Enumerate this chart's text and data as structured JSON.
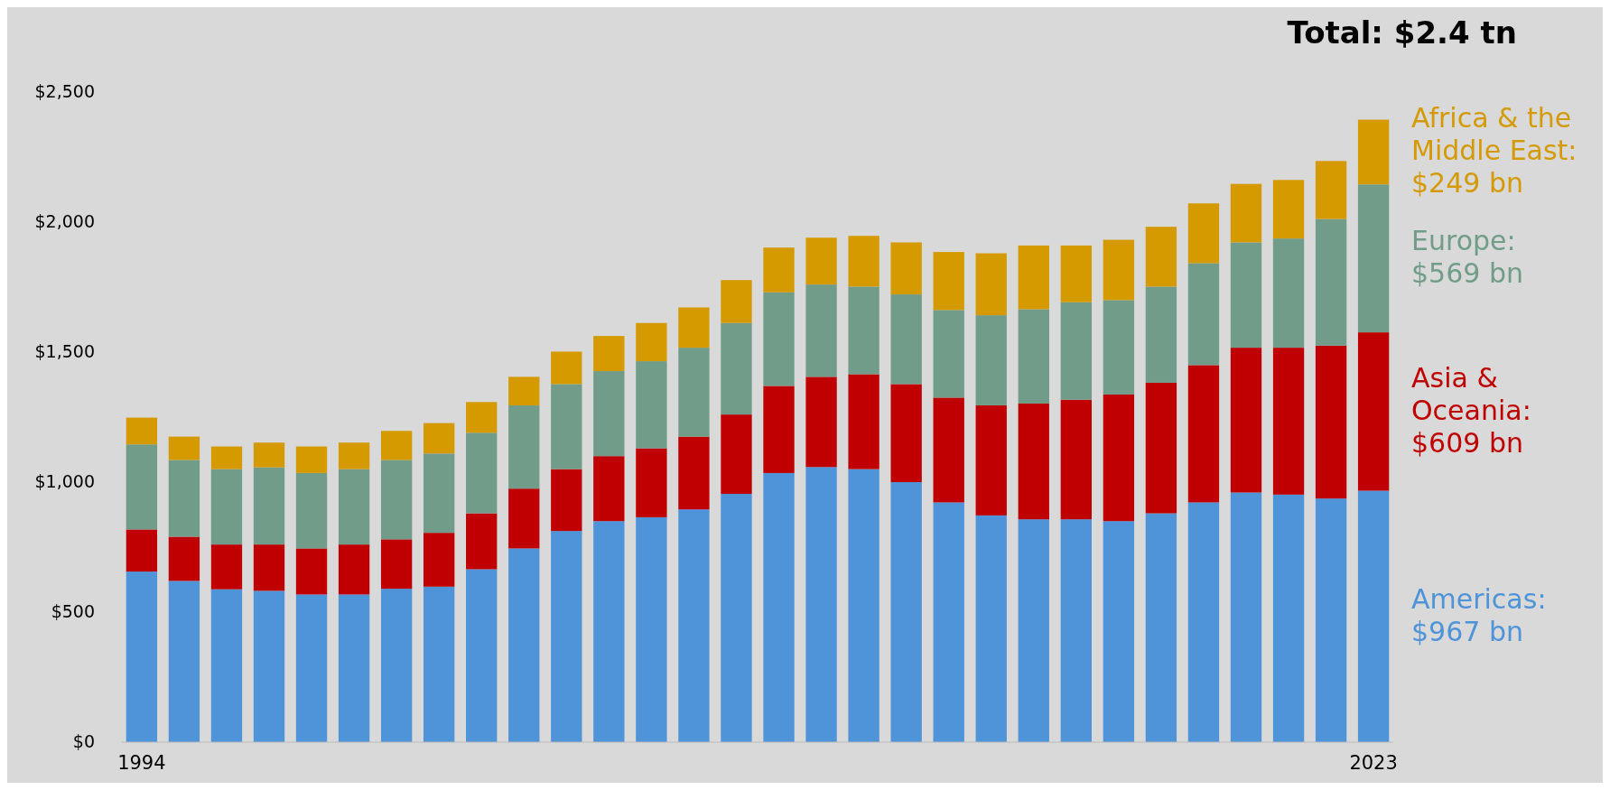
{
  "chart_data": {
    "type": "bar",
    "title": "Total: $2.4 tn",
    "stacked": true,
    "categories": [
      "1994",
      null,
      null,
      null,
      null,
      null,
      null,
      null,
      null,
      null,
      null,
      null,
      null,
      null,
      null,
      null,
      null,
      null,
      null,
      null,
      null,
      null,
      null,
      null,
      null,
      null,
      null,
      null,
      null,
      "2023"
    ],
    "ylim": [
      0,
      2500
    ],
    "yticks": [
      {
        "value": 0,
        "label": "$0"
      },
      {
        "value": 500,
        "label": "$500"
      },
      {
        "value": 1000,
        "label": "$1,000"
      },
      {
        "value": 1500,
        "label": "$1,500"
      },
      {
        "value": 2000,
        "label": "$2,000"
      },
      {
        "value": 2500,
        "label": "$2,500"
      }
    ],
    "series": [
      {
        "name": "Americas: $967 bn",
        "color": "#4f93d8",
        "values": [
          656,
          620,
          588,
          582,
          568,
          568,
          590,
          598,
          665,
          745,
          812,
          850,
          865,
          895,
          955,
          1035,
          1058,
          1050,
          1000,
          922,
          872,
          857,
          857,
          850,
          880,
          922,
          960,
          952,
          937,
          967
        ]
      },
      {
        "name": "Asia & Oceania: $609 bn",
        "color": "#c00000",
        "values": [
          162,
          170,
          172,
          178,
          177,
          192,
          190,
          207,
          215,
          230,
          238,
          250,
          265,
          280,
          305,
          335,
          347,
          365,
          377,
          403,
          423,
          445,
          460,
          487,
          502,
          528,
          557,
          565,
          588,
          609
        ]
      },
      {
        "name": "Europe: $569 bn",
        "color": "#729c8a",
        "values": [
          327,
          295,
          290,
          297,
          290,
          290,
          305,
          305,
          310,
          320,
          327,
          327,
          335,
          342,
          352,
          360,
          355,
          337,
          345,
          337,
          347,
          363,
          375,
          363,
          370,
          392,
          405,
          420,
          487,
          569
        ]
      },
      {
        "name": "Africa & the Middle East: $249 bn",
        "color": "#d49a00",
        "values": [
          103,
          90,
          87,
          95,
          102,
          102,
          112,
          117,
          118,
          110,
          125,
          135,
          147,
          155,
          165,
          172,
          180,
          195,
          200,
          223,
          238,
          245,
          218,
          232,
          230,
          230,
          225,
          225,
          223,
          249
        ]
      }
    ]
  }
}
